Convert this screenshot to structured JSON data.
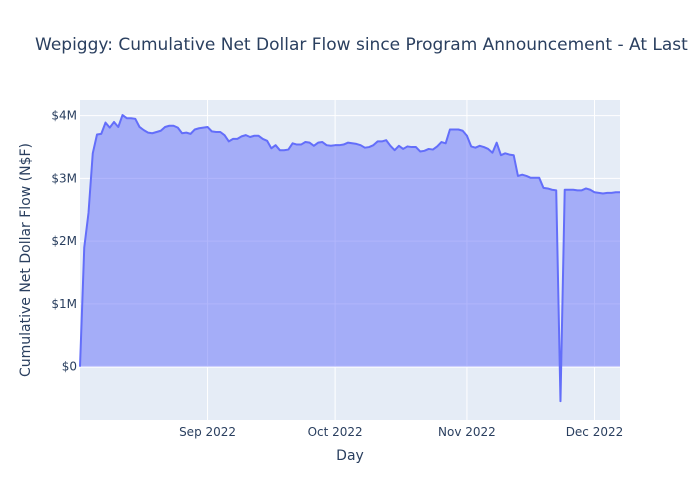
{
  "chart_data": {
    "type": "area",
    "title": "Wepiggy: Cumulative Net Dollar Flow since Program Announcement - At Last",
    "xlabel": "Day",
    "ylabel": "Cumulative Net Dollar Flow (N$F)",
    "x_ticks": [
      {
        "date": "2022-09-01",
        "label": "Sep 2022"
      },
      {
        "date": "2022-10-01",
        "label": "Oct 2022"
      },
      {
        "date": "2022-11-01",
        "label": "Nov 2022"
      },
      {
        "date": "2022-12-01",
        "label": "Dec 2022"
      }
    ],
    "y_ticks": [
      {
        "value": 0,
        "label": "$0"
      },
      {
        "value": 1000000,
        "label": "$1M"
      },
      {
        "value": 2000000,
        "label": "$2M"
      },
      {
        "value": 3000000,
        "label": "$3M"
      },
      {
        "value": 4000000,
        "label": "$4M"
      }
    ],
    "xlim": [
      "2022-08-02",
      "2022-12-07"
    ],
    "ylim": [
      -850000,
      4250000
    ],
    "grid": true,
    "colors": {
      "line": "#636efa",
      "fill": "rgba(99,110,250,0.5)",
      "plot_bg": "#e5ecf6",
      "grid": "#ffffff",
      "text": "#2a3f5f"
    },
    "series": [
      {
        "x": [
          "2022-08-02",
          "2022-08-03",
          "2022-08-04",
          "2022-08-05",
          "2022-08-06",
          "2022-08-07",
          "2022-08-08",
          "2022-08-09",
          "2022-08-10",
          "2022-08-11",
          "2022-08-12",
          "2022-08-13",
          "2022-08-14",
          "2022-08-15",
          "2022-08-16",
          "2022-08-17",
          "2022-08-18",
          "2022-08-19",
          "2022-08-20",
          "2022-08-21",
          "2022-08-22",
          "2022-08-23",
          "2022-08-24",
          "2022-08-25",
          "2022-08-26",
          "2022-08-27",
          "2022-08-28",
          "2022-08-29",
          "2022-08-30",
          "2022-08-31",
          "2022-09-01",
          "2022-09-02",
          "2022-09-03",
          "2022-09-04",
          "2022-09-05",
          "2022-09-06",
          "2022-09-07",
          "2022-09-08",
          "2022-09-09",
          "2022-09-10",
          "2022-09-11",
          "2022-09-12",
          "2022-09-13",
          "2022-09-14",
          "2022-09-15",
          "2022-09-16",
          "2022-09-17",
          "2022-09-18",
          "2022-09-19",
          "2022-09-20",
          "2022-09-21",
          "2022-09-22",
          "2022-09-23",
          "2022-09-24",
          "2022-09-25",
          "2022-09-26",
          "2022-09-27",
          "2022-09-28",
          "2022-09-29",
          "2022-09-30",
          "2022-10-01",
          "2022-10-02",
          "2022-10-03",
          "2022-10-04",
          "2022-10-05",
          "2022-10-06",
          "2022-10-07",
          "2022-10-08",
          "2022-10-09",
          "2022-10-10",
          "2022-10-11",
          "2022-10-12",
          "2022-10-13",
          "2022-10-14",
          "2022-10-15",
          "2022-10-16",
          "2022-10-17",
          "2022-10-18",
          "2022-10-19",
          "2022-10-20",
          "2022-10-21",
          "2022-10-22",
          "2022-10-23",
          "2022-10-24",
          "2022-10-25",
          "2022-10-26",
          "2022-10-27",
          "2022-10-28",
          "2022-10-29",
          "2022-10-30",
          "2022-10-31",
          "2022-11-01",
          "2022-11-02",
          "2022-11-03",
          "2022-11-04",
          "2022-11-05",
          "2022-11-06",
          "2022-11-07",
          "2022-11-08",
          "2022-11-09",
          "2022-11-10",
          "2022-11-11",
          "2022-11-12",
          "2022-11-13",
          "2022-11-14",
          "2022-11-15",
          "2022-11-16",
          "2022-11-17",
          "2022-11-18",
          "2022-11-19",
          "2022-11-20",
          "2022-11-21",
          "2022-11-22",
          "2022-11-23",
          "2022-11-24",
          "2022-11-25",
          "2022-11-26",
          "2022-11-27",
          "2022-11-28",
          "2022-11-29",
          "2022-11-30",
          "2022-12-01",
          "2022-12-02",
          "2022-12-03",
          "2022-12-04",
          "2022-12-05",
          "2022-12-06",
          "2022-12-07"
        ],
        "y": [
          0,
          1900000,
          2450000,
          3400000,
          3700000,
          3710000,
          3890000,
          3810000,
          3900000,
          3820000,
          4010000,
          3960000,
          3960000,
          3950000,
          3820000,
          3770000,
          3730000,
          3720000,
          3740000,
          3760000,
          3820000,
          3840000,
          3840000,
          3810000,
          3720000,
          3730000,
          3710000,
          3780000,
          3800000,
          3810000,
          3820000,
          3750000,
          3740000,
          3740000,
          3690000,
          3590000,
          3630000,
          3630000,
          3670000,
          3690000,
          3660000,
          3680000,
          3680000,
          3630000,
          3600000,
          3480000,
          3530000,
          3450000,
          3450000,
          3460000,
          3560000,
          3540000,
          3540000,
          3580000,
          3570000,
          3520000,
          3570000,
          3580000,
          3530000,
          3520000,
          3530000,
          3530000,
          3540000,
          3570000,
          3560000,
          3550000,
          3530000,
          3490000,
          3500000,
          3530000,
          3590000,
          3590000,
          3610000,
          3520000,
          3450000,
          3520000,
          3470000,
          3510000,
          3500000,
          3500000,
          3430000,
          3440000,
          3470000,
          3460000,
          3510000,
          3580000,
          3560000,
          3780000,
          3780000,
          3780000,
          3760000,
          3680000,
          3510000,
          3490000,
          3520000,
          3500000,
          3470000,
          3410000,
          3570000,
          3370000,
          3400000,
          3380000,
          3370000,
          3040000,
          3060000,
          3040000,
          3010000,
          3010000,
          3010000,
          2850000,
          2840000,
          2820000,
          2810000,
          -550000,
          2820000,
          2820000,
          2820000,
          2810000,
          2810000,
          2840000,
          2820000,
          2780000,
          2770000,
          2760000,
          2770000,
          2770000,
          2780000,
          2780000
        ]
      }
    ]
  }
}
